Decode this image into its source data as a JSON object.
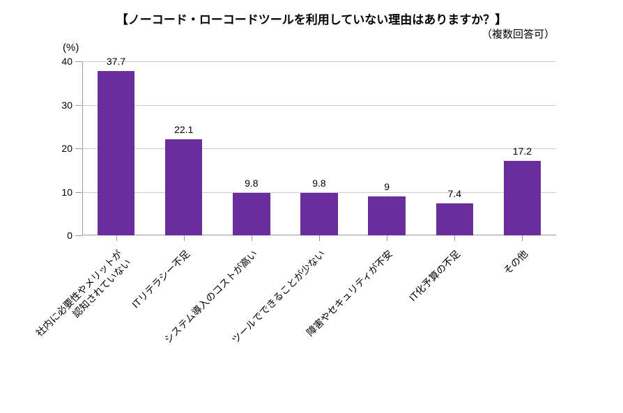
{
  "chart": {
    "type": "bar",
    "title": "【ノーコード・ローコードツールを利用していない理由はありますか？】",
    "subtitle": "（複数回答可）",
    "ylabel": "(%)",
    "ylim": [
      0,
      40
    ],
    "ytick_step": 10,
    "yticks": [
      0,
      10,
      20,
      30,
      40
    ],
    "categories": [
      "社内に必要性やメリットが\n認知されていない",
      "ITリテラシー不足",
      "システム導入のコストが高い",
      "ツールでできることが少ない",
      "障害やセキュリティが不安",
      "IT化予算の不足",
      "その他"
    ],
    "values": [
      37.7,
      22.1,
      9.8,
      9.8,
      9,
      7.4,
      17.2
    ],
    "value_labels": [
      "37.7",
      "22.1",
      "9.8",
      "9.8",
      "9",
      "7.4",
      "17.2"
    ],
    "bar_color": "#6a2d9c",
    "bar_width_ratio": 0.55,
    "background_color": "#ffffff",
    "grid_color": "#cccccc",
    "axis_color": "#999999",
    "text_color": "#000000",
    "title_fontsize": 17,
    "subtitle_fontsize": 15,
    "label_fontsize": 14,
    "tick_fontsize": 14
  }
}
